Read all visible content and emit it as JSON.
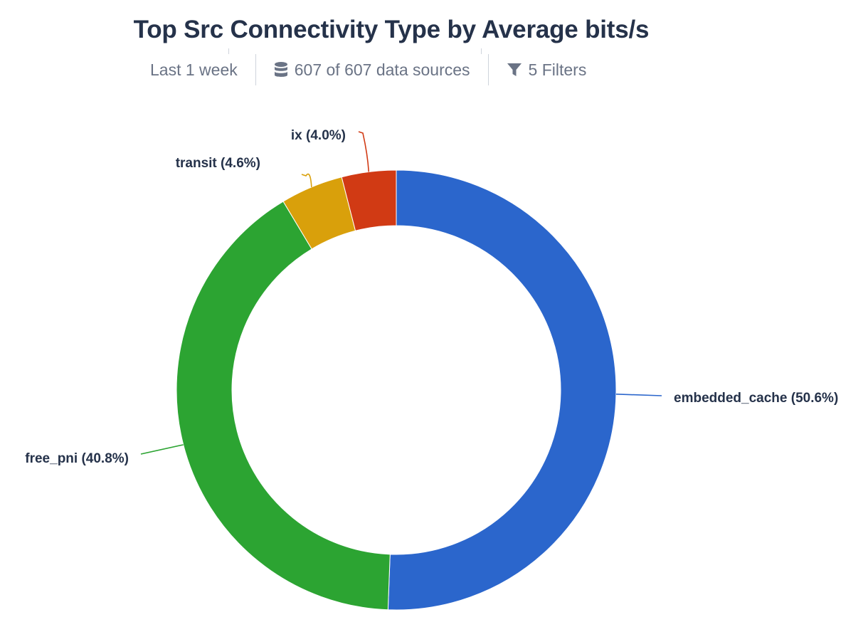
{
  "header": {
    "title": "Top Src Connectivity Type by Average bits/s",
    "time_range": "Last 1 week",
    "data_sources": "607 of 607 data sources",
    "filters": "5 Filters"
  },
  "icons": {
    "data_sources": "database-icon",
    "filters": "filter-icon"
  },
  "chart_data": {
    "type": "pie",
    "variant": "donut",
    "title": "Top Src Connectivity Type by Average bits/s",
    "slices": [
      {
        "label": "embedded_cache (50.6%)",
        "name": "embedded_cache",
        "value": 50.6,
        "color": "#2b66cc"
      },
      {
        "label": "free_pni (40.8%)",
        "name": "free_pni",
        "value": 40.8,
        "color": "#2ca432"
      },
      {
        "label": "transit (4.6%)",
        "name": "transit",
        "value": 4.6,
        "color": "#d9a00b"
      },
      {
        "label": "ix (4.0%)",
        "name": "ix",
        "value": 4.0,
        "color": "#d13a14"
      }
    ],
    "start_angle": "top",
    "direction": "clockwise"
  }
}
